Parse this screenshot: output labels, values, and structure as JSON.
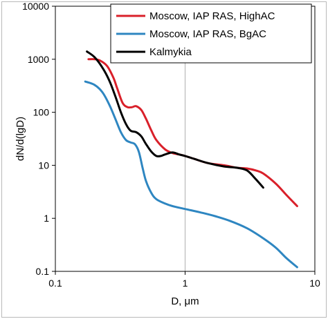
{
  "chart_data": {
    "type": "line",
    "x_scale": "log",
    "y_scale": "log",
    "xlim": [
      0.1,
      10
    ],
    "ylim": [
      0.1,
      10000
    ],
    "xlabel": "D, μm",
    "ylabel": "dN/d(lgD)",
    "x_ticks": [
      "0.1",
      "1",
      "10"
    ],
    "y_ticks": [
      "0.1",
      "1",
      "10",
      "100",
      "1000",
      "10000"
    ],
    "grid": "vertical-major",
    "legend_position": "top-right",
    "series": [
      {
        "name": "Moscow, IAP RAS, HighAC",
        "color": "#d9202a",
        "x": [
          0.18,
          0.2,
          0.22,
          0.25,
          0.28,
          0.3,
          0.33,
          0.36,
          0.39,
          0.42,
          0.46,
          0.5,
          0.55,
          0.6,
          0.7,
          0.8,
          0.9,
          1.0,
          1.2,
          1.5,
          2.0,
          2.5,
          3.0,
          3.5,
          4.0,
          5.0,
          6.0,
          7.3
        ],
        "y": [
          1000,
          1000,
          950,
          750,
          450,
          280,
          150,
          125,
          125,
          130,
          110,
          75,
          45,
          30,
          20,
          17,
          16,
          15,
          13,
          11,
          10,
          9,
          8.7,
          8,
          7,
          4.5,
          2.8,
          1.7
        ]
      },
      {
        "name": "Moscow, IAP RAS, BgAC",
        "color": "#2e86c1",
        "x": [
          0.17,
          0.2,
          0.23,
          0.26,
          0.29,
          0.32,
          0.35,
          0.38,
          0.41,
          0.44,
          0.47,
          0.5,
          0.55,
          0.6,
          0.7,
          0.8,
          1.0,
          1.3,
          1.7,
          2.2,
          3.0,
          4.0,
          5.0,
          6.0,
          7.3
        ],
        "y": [
          380,
          330,
          240,
          140,
          75,
          42,
          30,
          27,
          25,
          18,
          9,
          5,
          3,
          2.3,
          1.9,
          1.7,
          1.5,
          1.3,
          1.1,
          0.9,
          0.65,
          0.42,
          0.28,
          0.18,
          0.12
        ]
      },
      {
        "name": "Kalmykia",
        "color": "#000000",
        "x": [
          0.175,
          0.2,
          0.23,
          0.26,
          0.29,
          0.32,
          0.35,
          0.38,
          0.42,
          0.46,
          0.5,
          0.55,
          0.6,
          0.65,
          0.7,
          0.8,
          0.9,
          1.0,
          1.2,
          1.5,
          2.0,
          2.5,
          3.0,
          3.5,
          4.0
        ],
        "y": [
          1400,
          1100,
          700,
          400,
          200,
          100,
          60,
          45,
          42,
          35,
          25,
          18,
          15,
          15,
          16,
          17.5,
          16,
          15,
          13,
          11,
          9.5,
          9,
          8,
          5.5,
          3.8
        ]
      }
    ]
  }
}
